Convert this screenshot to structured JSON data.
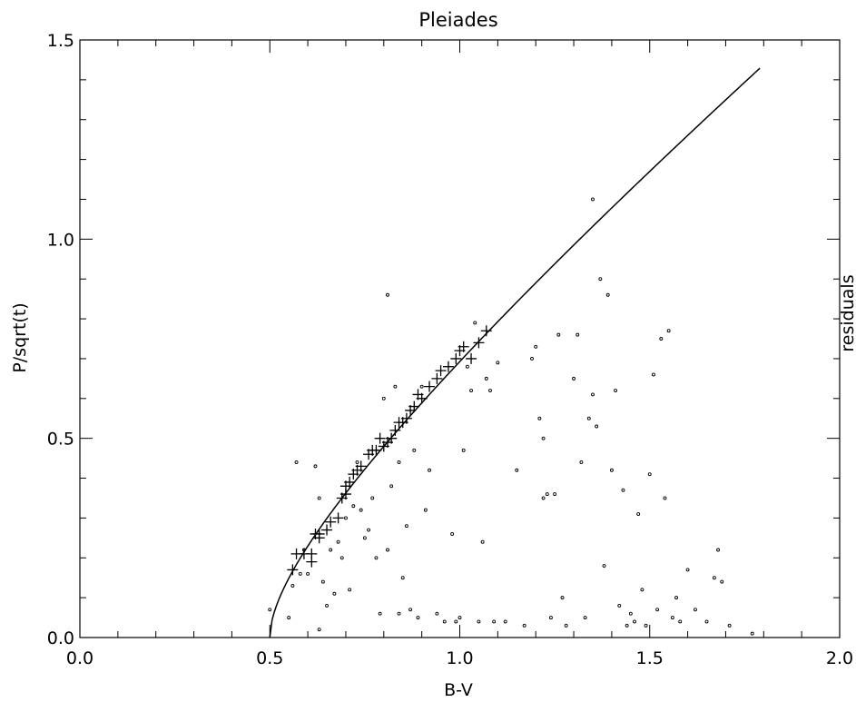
{
  "chart_data": {
    "type": "scatter",
    "title": "Pleiades",
    "xlabel": "B-V",
    "ylabel": "P/sqrt(t)",
    "right_label": "residuals",
    "xlim": [
      0.0,
      2.0
    ],
    "ylim": [
      0.0,
      1.5
    ],
    "xticks": [
      "0.0",
      "0.5",
      "1.0",
      "1.5",
      "2.0"
    ],
    "yticks": [
      "0.0",
      "0.5",
      "1.0",
      "1.5"
    ],
    "grid": false,
    "legend": "none",
    "colors": {
      "ink": "#000000",
      "background": "#ffffff"
    },
    "series": [
      {
        "marker": "plus",
        "points": [
          [
            0.56,
            0.17
          ],
          [
            0.57,
            0.21
          ],
          [
            0.59,
            0.21
          ],
          [
            0.61,
            0.19
          ],
          [
            0.61,
            0.21
          ],
          [
            0.62,
            0.26
          ],
          [
            0.63,
            0.25
          ],
          [
            0.63,
            0.26
          ],
          [
            0.65,
            0.27
          ],
          [
            0.66,
            0.29
          ],
          [
            0.68,
            0.3
          ],
          [
            0.69,
            0.35
          ],
          [
            0.7,
            0.36
          ],
          [
            0.7,
            0.38
          ],
          [
            0.71,
            0.39
          ],
          [
            0.72,
            0.41
          ],
          [
            0.73,
            0.42
          ],
          [
            0.74,
            0.43
          ],
          [
            0.76,
            0.46
          ],
          [
            0.77,
            0.47
          ],
          [
            0.78,
            0.47
          ],
          [
            0.79,
            0.5
          ],
          [
            0.8,
            0.48
          ],
          [
            0.81,
            0.49
          ],
          [
            0.82,
            0.5
          ],
          [
            0.83,
            0.52
          ],
          [
            0.84,
            0.54
          ],
          [
            0.85,
            0.54
          ],
          [
            0.86,
            0.55
          ],
          [
            0.87,
            0.57
          ],
          [
            0.88,
            0.58
          ],
          [
            0.89,
            0.61
          ],
          [
            0.9,
            0.6
          ],
          [
            0.92,
            0.63
          ],
          [
            0.94,
            0.65
          ],
          [
            0.95,
            0.67
          ],
          [
            0.97,
            0.68
          ],
          [
            0.99,
            0.7
          ],
          [
            1.0,
            0.72
          ],
          [
            1.01,
            0.73
          ],
          [
            1.03,
            0.7
          ],
          [
            1.05,
            0.74
          ],
          [
            1.07,
            0.77
          ]
        ]
      },
      {
        "marker": "dot",
        "points": [
          [
            0.5,
            0.07
          ],
          [
            0.55,
            0.05
          ],
          [
            0.56,
            0.13
          ],
          [
            0.57,
            0.44
          ],
          [
            0.58,
            0.16
          ],
          [
            0.59,
            0.22
          ],
          [
            0.6,
            0.16
          ],
          [
            0.62,
            0.43
          ],
          [
            0.63,
            0.02
          ],
          [
            0.63,
            0.35
          ],
          [
            0.64,
            0.14
          ],
          [
            0.65,
            0.08
          ],
          [
            0.66,
            0.22
          ],
          [
            0.67,
            0.11
          ],
          [
            0.68,
            0.24
          ],
          [
            0.69,
            0.2
          ],
          [
            0.7,
            0.3
          ],
          [
            0.71,
            0.12
          ],
          [
            0.72,
            0.33
          ],
          [
            0.73,
            0.44
          ],
          [
            0.74,
            0.32
          ],
          [
            0.75,
            0.25
          ],
          [
            0.76,
            0.27
          ],
          [
            0.77,
            0.35
          ],
          [
            0.78,
            0.2
          ],
          [
            0.79,
            0.06
          ],
          [
            0.8,
            0.6
          ],
          [
            0.81,
            0.22
          ],
          [
            0.81,
            0.86
          ],
          [
            0.82,
            0.38
          ],
          [
            0.83,
            0.63
          ],
          [
            0.84,
            0.44
          ],
          [
            0.84,
            0.06
          ],
          [
            0.85,
            0.15
          ],
          [
            0.86,
            0.28
          ],
          [
            0.87,
            0.07
          ],
          [
            0.88,
            0.47
          ],
          [
            0.89,
            0.05
          ],
          [
            0.9,
            0.63
          ],
          [
            0.91,
            0.32
          ],
          [
            0.92,
            0.42
          ],
          [
            0.94,
            0.06
          ],
          [
            0.96,
            0.04
          ],
          [
            0.98,
            0.26
          ],
          [
            0.99,
            0.04
          ],
          [
            1.0,
            0.05
          ],
          [
            1.01,
            0.47
          ],
          [
            1.02,
            0.68
          ],
          [
            1.03,
            0.62
          ],
          [
            1.04,
            0.79
          ],
          [
            1.05,
            0.04
          ],
          [
            1.06,
            0.24
          ],
          [
            1.07,
            0.65
          ],
          [
            1.08,
            0.62
          ],
          [
            1.09,
            0.04
          ],
          [
            1.1,
            0.69
          ],
          [
            1.12,
            0.04
          ],
          [
            1.15,
            0.42
          ],
          [
            1.17,
            0.03
          ],
          [
            1.19,
            0.7
          ],
          [
            1.2,
            0.73
          ],
          [
            1.21,
            0.55
          ],
          [
            1.22,
            0.35
          ],
          [
            1.22,
            0.5
          ],
          [
            1.23,
            0.36
          ],
          [
            1.24,
            0.05
          ],
          [
            1.25,
            0.36
          ],
          [
            1.26,
            0.76
          ],
          [
            1.27,
            0.1
          ],
          [
            1.28,
            0.03
          ],
          [
            1.3,
            0.65
          ],
          [
            1.31,
            0.76
          ],
          [
            1.32,
            0.44
          ],
          [
            1.33,
            0.05
          ],
          [
            1.34,
            0.55
          ],
          [
            1.35,
            0.61
          ],
          [
            1.35,
            1.1
          ],
          [
            1.36,
            0.53
          ],
          [
            1.37,
            0.9
          ],
          [
            1.38,
            0.18
          ],
          [
            1.39,
            0.86
          ],
          [
            1.4,
            0.42
          ],
          [
            1.41,
            0.62
          ],
          [
            1.42,
            0.08
          ],
          [
            1.43,
            0.37
          ],
          [
            1.44,
            0.03
          ],
          [
            1.45,
            0.06
          ],
          [
            1.46,
            0.04
          ],
          [
            1.47,
            0.31
          ],
          [
            1.48,
            0.12
          ],
          [
            1.49,
            0.03
          ],
          [
            1.5,
            0.41
          ],
          [
            1.51,
            0.66
          ],
          [
            1.52,
            0.07
          ],
          [
            1.53,
            0.75
          ],
          [
            1.54,
            0.35
          ],
          [
            1.55,
            0.77
          ],
          [
            1.56,
            0.05
          ],
          [
            1.57,
            0.1
          ],
          [
            1.58,
            0.04
          ],
          [
            1.6,
            0.17
          ],
          [
            1.62,
            0.07
          ],
          [
            1.65,
            0.04
          ],
          [
            1.67,
            0.15
          ],
          [
            1.68,
            0.22
          ],
          [
            1.69,
            0.14
          ],
          [
            1.71,
            0.03
          ],
          [
            1.77,
            0.01
          ]
        ]
      },
      {
        "type": "line",
        "curve": "P/sqrt(t) = a*sqrt((B-V)-0.5) + b*((B-V)-0.5)",
        "params": {
          "a": 0.52,
          "b": 0.65,
          "x0": 0.5
        },
        "x_range": [
          0.5,
          1.79
        ]
      }
    ]
  }
}
